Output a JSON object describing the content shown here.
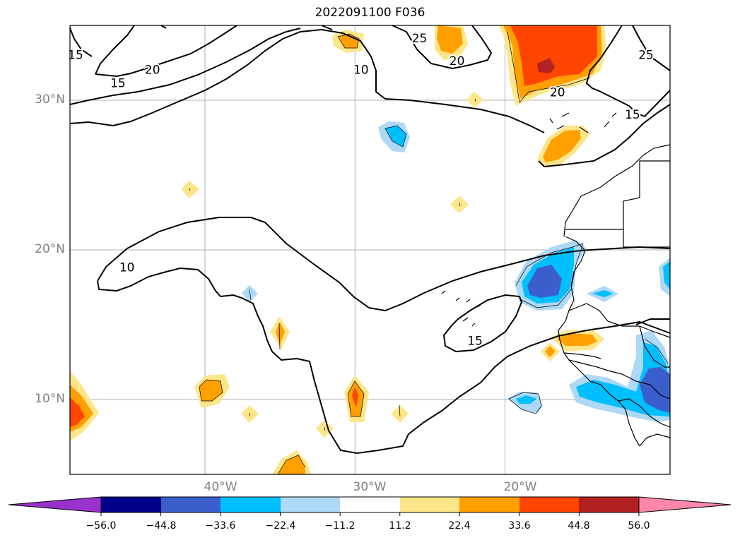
{
  "title": "2022091100 F036",
  "colors": {
    "neg_purple": "#9932cc",
    "neg_navy": "#00008b",
    "neg_royal": "#3a5fcd",
    "neg_sky": "#00bfff",
    "neg_light": "#add8f6",
    "neutral": "#ffffff",
    "pos_yellow": "#fde68a",
    "pos_orange": "#ffa000",
    "pos_redorange": "#ff4500",
    "pos_darkred": "#b22222",
    "pos_pink": "#ff88aa",
    "grid": "#b0b0b0",
    "contour": "#000000",
    "axis_label": "#808080"
  },
  "map": {
    "lon_range": [
      -49,
      -9
    ],
    "lat_range": [
      5,
      35
    ],
    "lat_ticks": [
      {
        "value": 30,
        "label": "30°N"
      },
      {
        "value": 20,
        "label": "20°N"
      },
      {
        "value": 10,
        "label": "10°N"
      }
    ],
    "lon_ticks": [
      {
        "value": -40,
        "label": "40°W"
      },
      {
        "value": -30,
        "label": "30°W"
      },
      {
        "value": -20,
        "label": "20°W"
      }
    ],
    "contour_labels": [
      {
        "text": "15",
        "lon": -49.5,
        "lat": 33.0
      },
      {
        "text": "20",
        "lon": -43.5,
        "lat": 32.0
      },
      {
        "text": "15",
        "lon": -45.8,
        "lat": 31.1
      },
      {
        "text": "10",
        "lon": -29.6,
        "lat": 32.0
      },
      {
        "text": "25",
        "lon": -25.7,
        "lat": 34.1
      },
      {
        "text": "20",
        "lon": -23.2,
        "lat": 32.6
      },
      {
        "text": "25",
        "lon": -10.6,
        "lat": 33.0
      },
      {
        "text": "20",
        "lon": -16.5,
        "lat": 30.5
      },
      {
        "text": "15",
        "lon": -11.5,
        "lat": 29.0
      },
      {
        "text": "10",
        "lon": -45.2,
        "lat": 18.8
      },
      {
        "text": "15",
        "lon": -22.0,
        "lat": 13.9
      }
    ]
  },
  "colorbar": {
    "ticks": [
      "−56.0",
      "−44.8",
      "−33.6",
      "−22.4",
      "−11.2",
      "11.2",
      "22.4",
      "33.6",
      "44.8",
      "56.0"
    ]
  }
}
